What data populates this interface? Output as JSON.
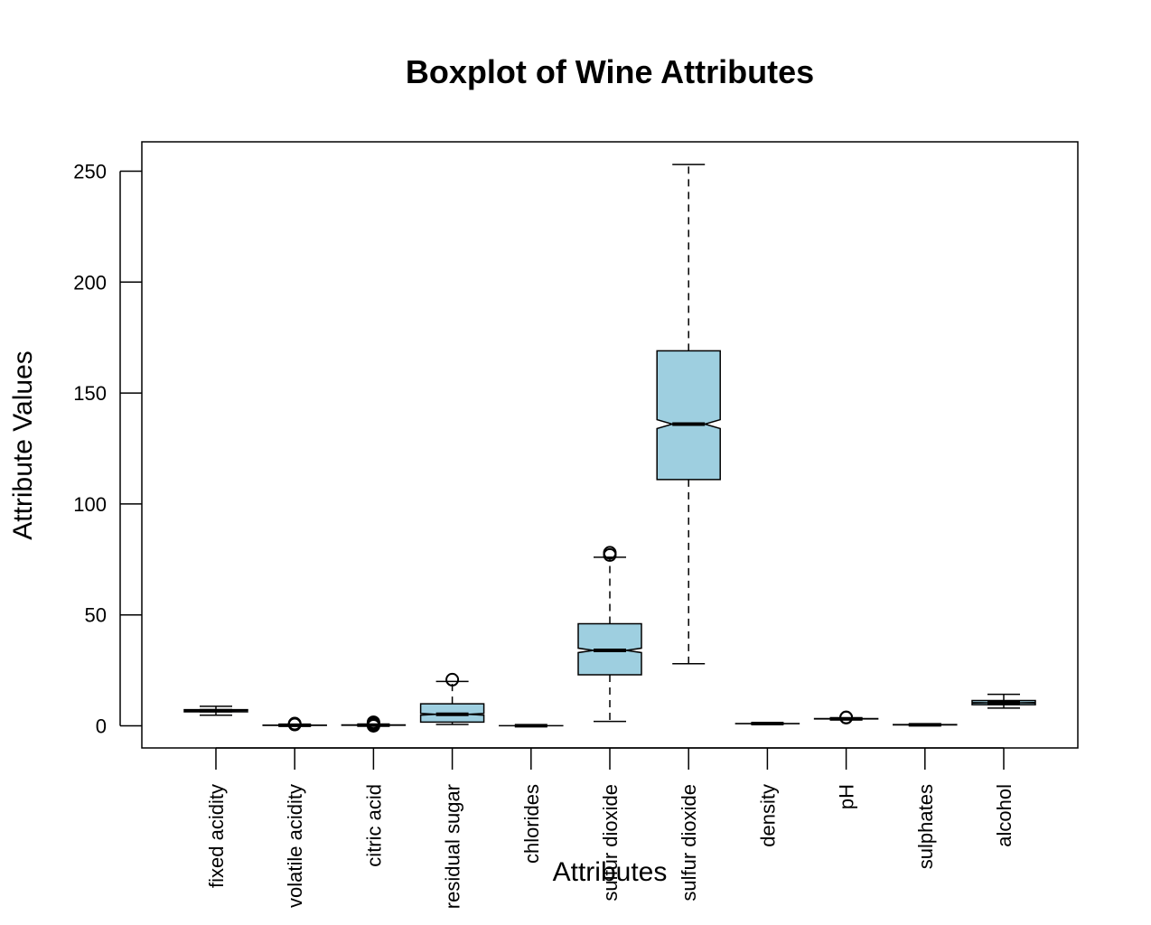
{
  "chart_data": {
    "type": "boxplot",
    "title": "Boxplot of Wine Attributes",
    "xlabel": "Attributes",
    "ylabel": "Attribute Values",
    "ylim": [
      -10,
      263
    ],
    "yticks": [
      0,
      50,
      100,
      150,
      200,
      250
    ],
    "notched": true,
    "box_color": "#9ecfe0",
    "grid": false,
    "categories": [
      "fixed acidity",
      "volatile acidity",
      "citric acid",
      "residual sugar",
      "chlorides",
      "sulfur dioxide",
      "sulfur dioxide",
      "density",
      "pH",
      "sulphates",
      "alcohol"
    ],
    "boxes": [
      {
        "label": "fixed acidity",
        "whisker_low": 4.8,
        "q1": 6.3,
        "median": 6.8,
        "q3": 7.3,
        "whisker_high": 8.8,
        "notch": [
          6.75,
          6.85
        ],
        "outliers": []
      },
      {
        "label": "volatile acidity",
        "whisker_low": 0.08,
        "q1": 0.21,
        "median": 0.26,
        "q3": 0.32,
        "whisker_high": 0.49,
        "notch": [
          0.255,
          0.265
        ],
        "outliers": [
          0.6,
          0.7,
          0.8,
          1.0
        ]
      },
      {
        "label": "citric acid",
        "whisker_low": 0.0,
        "q1": 0.27,
        "median": 0.32,
        "q3": 0.39,
        "whisker_high": 0.57,
        "notch": [
          0.31,
          0.33
        ],
        "outliers": [
          0.0,
          0.7,
          1.0,
          1.6
        ]
      },
      {
        "label": "residual sugar",
        "whisker_low": 0.6,
        "q1": 1.7,
        "median": 5.2,
        "q3": 9.9,
        "whisker_high": 20.0,
        "notch": [
          4.8,
          5.6
        ],
        "outliers": [
          20.8
        ]
      },
      {
        "label": "chlorides",
        "whisker_low": 0.01,
        "q1": 0.036,
        "median": 0.043,
        "q3": 0.05,
        "whisker_high": 0.07,
        "notch": [
          0.042,
          0.044
        ],
        "outliers": []
      },
      {
        "label": "sulfur dioxide",
        "whisker_low": 2,
        "q1": 23,
        "median": 34,
        "q3": 46,
        "whisker_high": 76,
        "notch": [
          33,
          35
        ],
        "outliers": [
          77,
          78
        ]
      },
      {
        "label": "sulfur dioxide",
        "whisker_low": 28,
        "q1": 111,
        "median": 136,
        "q3": 169,
        "whisker_high": 253,
        "notch": [
          134,
          138
        ],
        "outliers": []
      },
      {
        "label": "density",
        "whisker_low": 0.987,
        "q1": 0.992,
        "median": 0.994,
        "q3": 0.996,
        "whisker_high": 1.002,
        "notch": [
          0.9935,
          0.9945
        ],
        "outliers": []
      },
      {
        "label": "pH",
        "whisker_low": 2.7,
        "q1": 3.09,
        "median": 3.18,
        "q3": 3.28,
        "whisker_high": 3.57,
        "notch": [
          3.17,
          3.19
        ],
        "outliers": [
          3.7,
          3.8
        ]
      },
      {
        "label": "sulphates",
        "whisker_low": 0.22,
        "q1": 0.41,
        "median": 0.47,
        "q3": 0.55,
        "whisker_high": 0.76,
        "notch": [
          0.465,
          0.475
        ],
        "outliers": []
      },
      {
        "label": "alcohol",
        "whisker_low": 8.0,
        "q1": 9.5,
        "median": 10.4,
        "q3": 11.4,
        "whisker_high": 14.2,
        "notch": [
          10.3,
          10.5
        ],
        "outliers": []
      }
    ]
  }
}
